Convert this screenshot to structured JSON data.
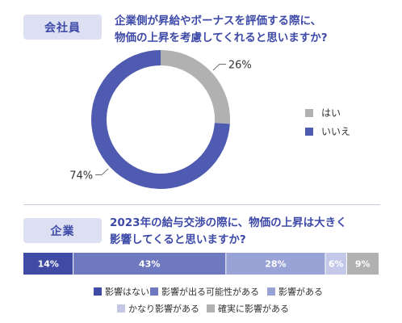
{
  "section1": {
    "tag": "会社員",
    "question_line1": "企業側が昇給やボーナスを評価する際に、",
    "question_line2": "物価の上昇を考慮してくれると思いますか?"
  },
  "section2": {
    "tag": "企業",
    "question_line1": "2023年の給与交渉の際に、物価の上昇は大きく",
    "question_line2": "影響してくると思いますか?"
  },
  "chart_data": [
    {
      "type": "pie",
      "variant": "donut",
      "labels": [
        "はい",
        "いいえ"
      ],
      "values": [
        26,
        74
      ],
      "value_labels": [
        "26%",
        "74%"
      ],
      "colors": [
        "#b1b1b1",
        "#4f5bb0"
      ],
      "legend": "right"
    },
    {
      "type": "bar",
      "variant": "100% stacked horizontal",
      "categories": [
        "影響はない",
        "影響が出る可能性がある",
        "影響がある",
        "かなり影響がある",
        "確実に影響がある"
      ],
      "values": [
        14,
        43,
        28,
        6,
        9
      ],
      "value_labels": [
        "14%",
        "43%",
        "28%",
        "6%",
        "9%"
      ],
      "colors": [
        "#3f4ba4",
        "#6e79bf",
        "#9aa3d6",
        "#c3c8e8",
        "#b1b1b1"
      ],
      "legend": "bottom"
    }
  ]
}
